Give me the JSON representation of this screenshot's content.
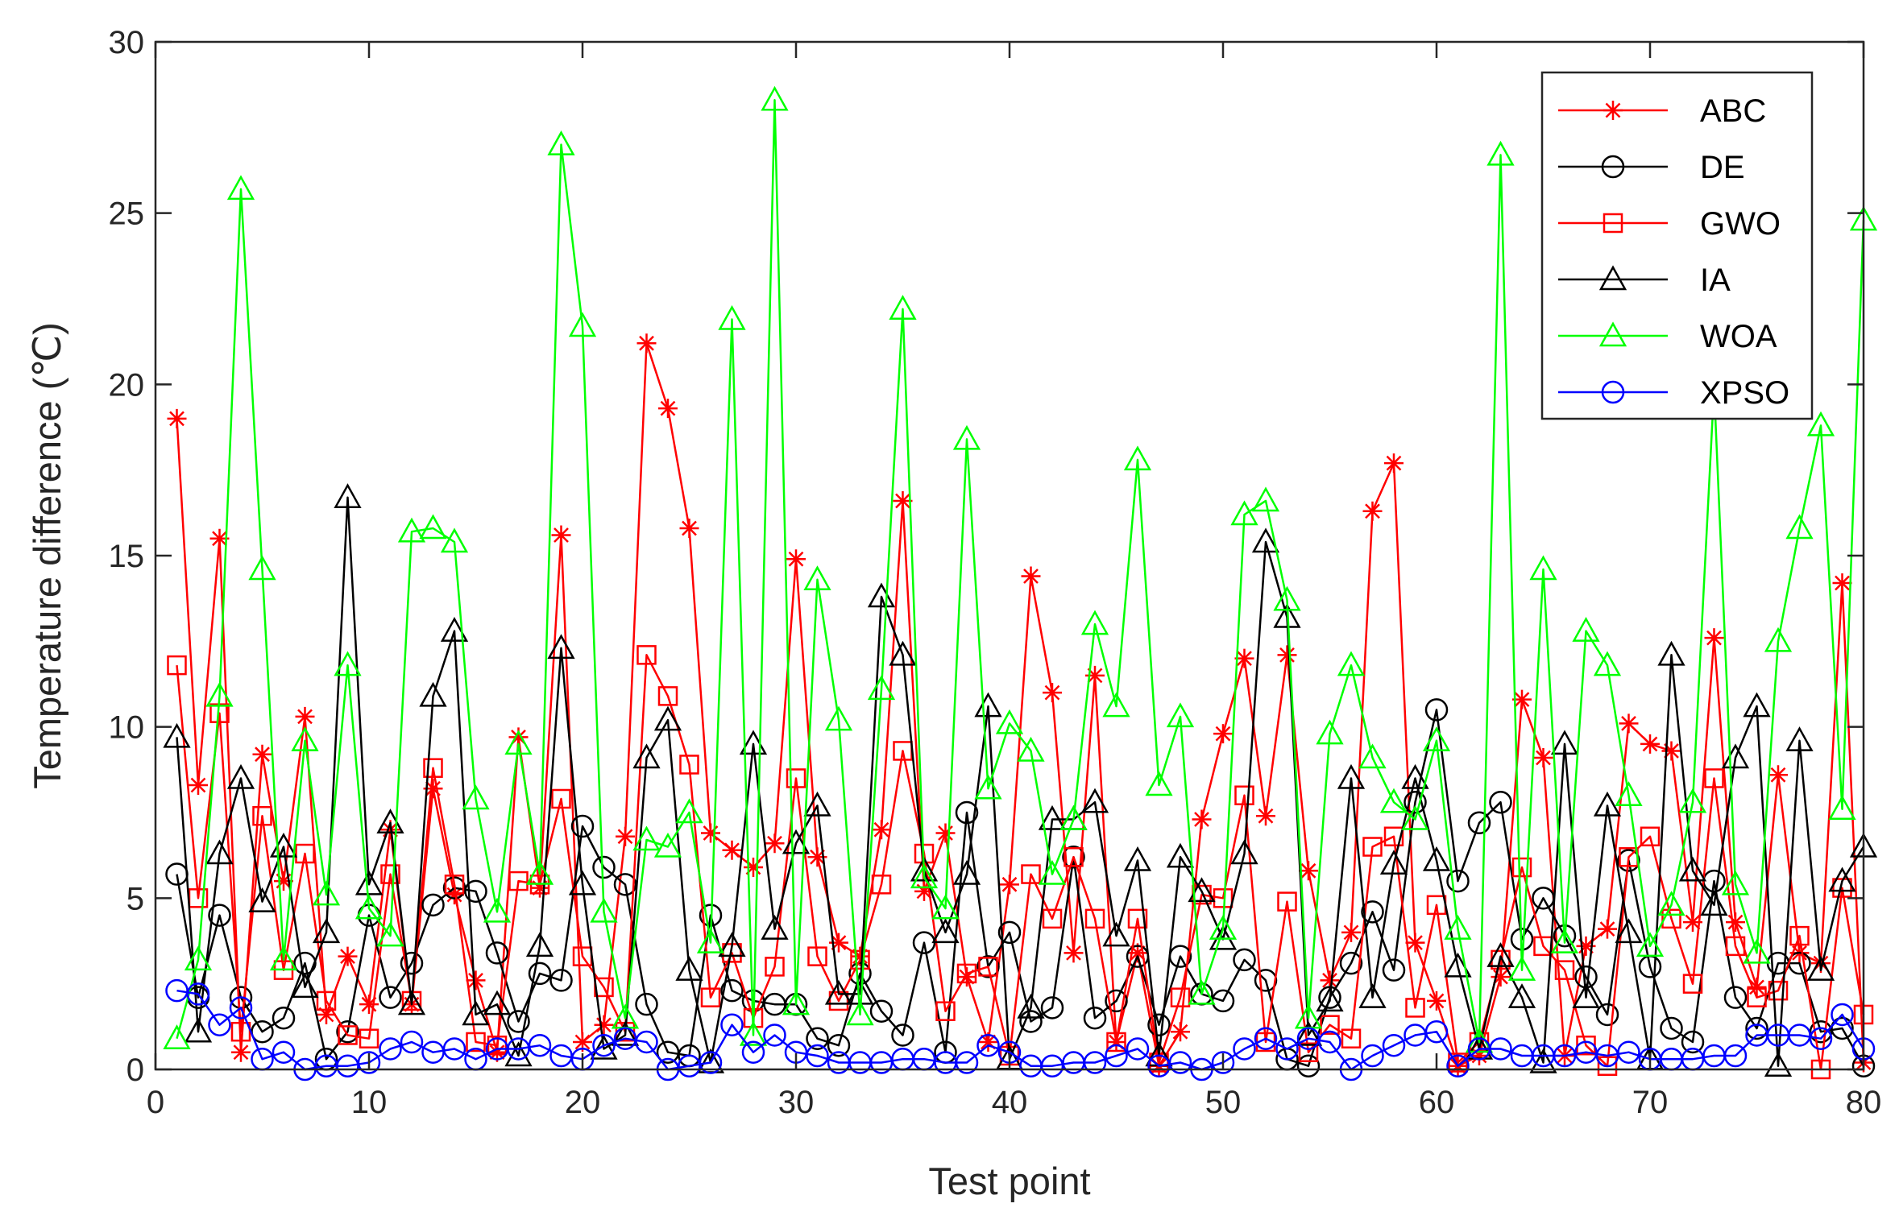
{
  "chart_data": {
    "type": "line",
    "title": "",
    "xlabel": "Test point",
    "ylabel": "Temperature difference (℃)",
    "xlim": [
      0,
      80
    ],
    "ylim": [
      0,
      30
    ],
    "xticks": [
      0,
      10,
      20,
      30,
      40,
      50,
      60,
      70,
      80
    ],
    "yticks": [
      0,
      5,
      10,
      15,
      20,
      25,
      30
    ],
    "grid": false,
    "legend_position": "top-right",
    "x": [
      1,
      2,
      3,
      4,
      5,
      6,
      7,
      8,
      9,
      10,
      11,
      12,
      13,
      14,
      15,
      16,
      17,
      18,
      19,
      20,
      21,
      22,
      23,
      24,
      25,
      26,
      27,
      28,
      29,
      30,
      31,
      32,
      33,
      34,
      35,
      36,
      37,
      38,
      39,
      40,
      41,
      42,
      43,
      44,
      45,
      46,
      47,
      48,
      49,
      50,
      51,
      52,
      53,
      54,
      55,
      56,
      57,
      58,
      59,
      60,
      61,
      62,
      63,
      64,
      65,
      66,
      67,
      68,
      69,
      70,
      71,
      72,
      73,
      74,
      75,
      76,
      77,
      78,
      79,
      80
    ],
    "series": [
      {
        "name": "ABC",
        "color": "#ff0000",
        "marker": "asterisk",
        "values": [
          19.0,
          8.3,
          15.5,
          0.5,
          9.2,
          5.5,
          10.3,
          1.6,
          3.3,
          1.9,
          7.0,
          1.9,
          8.2,
          5.1,
          2.6,
          0.5,
          9.7,
          5.3,
          15.6,
          0.8,
          1.3,
          6.8,
          21.2,
          19.3,
          15.8,
          6.9,
          6.4,
          5.9,
          6.6,
          14.9,
          6.2,
          3.7,
          3.3,
          7.0,
          16.6,
          5.2,
          6.9,
          2.7,
          0.8,
          5.4,
          14.4,
          11.0,
          3.4,
          11.5,
          0.8,
          3.4,
          0.1,
          1.1,
          7.3,
          9.8,
          12.0,
          7.4,
          12.1,
          5.8,
          2.6,
          4.0,
          16.3,
          17.7,
          3.7,
          2.0,
          0.1,
          0.4,
          2.7,
          10.8,
          9.1,
          0.4,
          3.6,
          4.1,
          10.1,
          9.5,
          9.3,
          4.3,
          12.6,
          4.3,
          2.4,
          8.6,
          3.4,
          3.1,
          14.2,
          0.2
        ]
      },
      {
        "name": "DE",
        "color": "#000000",
        "marker": "circle",
        "values": [
          5.7,
          2.1,
          4.5,
          2.1,
          1.1,
          1.5,
          3.1,
          0.3,
          1.1,
          4.5,
          2.1,
          3.1,
          4.8,
          5.3,
          5.2,
          3.4,
          1.4,
          2.8,
          2.6,
          7.1,
          5.9,
          5.4,
          1.9,
          0.5,
          0.4,
          4.5,
          2.3,
          2.0,
          1.9,
          1.9,
          0.9,
          0.7,
          2.8,
          1.7,
          1.0,
          3.7,
          0.5,
          7.5,
          3.0,
          4.0,
          1.4,
          1.8,
          6.2,
          1.5,
          2.0,
          3.3,
          1.3,
          3.3,
          2.2,
          2.0,
          3.2,
          2.6,
          0.3,
          0.1,
          2.1,
          3.1,
          4.6,
          2.9,
          7.8,
          10.5,
          5.5,
          7.2,
          7.8,
          3.8,
          5.0,
          3.9,
          2.7,
          1.6,
          6.1,
          3.0,
          1.2,
          0.8,
          5.5,
          2.1,
          1.2,
          3.1,
          3.1,
          1.1,
          1.2,
          0.1
        ]
      },
      {
        "name": "GWO",
        "color": "#ff0000",
        "marker": "square",
        "values": [
          11.8,
          5.0,
          10.4,
          1.1,
          7.4,
          2.9,
          6.3,
          2.0,
          1.0,
          0.9,
          5.7,
          2.0,
          8.8,
          5.4,
          0.8,
          0.7,
          5.5,
          5.4,
          7.9,
          3.3,
          2.4,
          1.1,
          12.1,
          10.9,
          8.9,
          2.1,
          3.4,
          1.5,
          3.0,
          8.5,
          3.3,
          2.0,
          3.2,
          5.4,
          9.3,
          6.3,
          1.7,
          2.8,
          3.0,
          0.4,
          5.7,
          4.4,
          6.2,
          4.4,
          0.8,
          4.4,
          0.2,
          2.1,
          5.1,
          5.0,
          8.0,
          0.8,
          4.9,
          0.5,
          1.3,
          0.9,
          6.5,
          6.8,
          1.8,
          4.8,
          0.2,
          0.8,
          3.2,
          5.9,
          3.6,
          2.9,
          0.7,
          0.1,
          6.2,
          6.8,
          4.4,
          2.5,
          8.5,
          3.6,
          2.1,
          2.3,
          3.9,
          0.0,
          5.3,
          1.6
        ]
      },
      {
        "name": "IA",
        "color": "#000000",
        "marker": "triangle",
        "values": [
          9.7,
          1.1,
          6.3,
          8.5,
          4.9,
          6.5,
          2.4,
          4.0,
          16.7,
          5.4,
          7.2,
          1.9,
          10.9,
          12.8,
          1.6,
          1.9,
          0.4,
          3.6,
          12.3,
          5.4,
          0.6,
          1.0,
          9.1,
          10.2,
          2.9,
          0.2,
          3.6,
          9.5,
          4.1,
          6.6,
          7.7,
          2.2,
          2.2,
          13.8,
          12.1,
          5.8,
          4.0,
          5.7,
          10.6,
          0.3,
          1.8,
          7.3,
          7.3,
          7.8,
          3.9,
          6.1,
          0.4,
          6.2,
          5.2,
          3.8,
          6.3,
          15.4,
          13.2,
          1.0,
          2.0,
          8.5,
          2.1,
          6.0,
          8.5,
          6.1,
          3.0,
          0.6,
          3.3,
          2.1,
          0.2,
          9.5,
          2.1,
          7.7,
          4.0,
          0.3,
          12.1,
          5.8,
          4.8,
          9.1,
          10.6,
          0.1,
          9.6,
          2.9,
          5.5,
          6.5
        ]
      },
      {
        "name": "WOA",
        "color": "#00ff00",
        "marker": "triangle",
        "values": [
          0.9,
          3.2,
          10.9,
          25.7,
          14.6,
          3.2,
          9.6,
          5.1,
          11.8,
          4.7,
          3.9,
          15.7,
          15.8,
          15.4,
          7.9,
          4.6,
          9.5,
          5.7,
          27.0,
          21.7,
          4.6,
          1.5,
          6.7,
          6.5,
          7.5,
          3.7,
          21.9,
          1.0,
          28.3,
          1.9,
          14.3,
          10.2,
          1.6,
          11.1,
          22.2,
          5.6,
          4.7,
          18.4,
          8.2,
          10.1,
          9.3,
          5.7,
          7.3,
          13.0,
          10.6,
          17.8,
          8.3,
          10.3,
          2.2,
          4.1,
          16.2,
          16.6,
          13.7,
          1.5,
          9.8,
          11.8,
          9.1,
          7.8,
          7.3,
          9.6,
          4.1,
          0.8,
          26.7,
          2.9,
          14.6,
          3.7,
          12.8,
          11.8,
          8.0,
          3.6,
          4.8,
          7.8,
          19.9,
          5.4,
          3.4,
          12.5,
          15.8,
          18.8,
          7.6,
          24.8
        ]
      },
      {
        "name": "XPSO",
        "color": "#0000ff",
        "marker": "circle",
        "values": [
          2.3,
          2.2,
          1.3,
          1.8,
          0.3,
          0.5,
          0.0,
          0.1,
          0.1,
          0.2,
          0.6,
          0.8,
          0.5,
          0.6,
          0.3,
          0.6,
          0.6,
          0.7,
          0.4,
          0.3,
          0.7,
          0.9,
          0.8,
          0.0,
          0.1,
          0.2,
          1.3,
          0.5,
          1.0,
          0.5,
          0.4,
          0.2,
          0.2,
          0.2,
          0.3,
          0.3,
          0.2,
          0.2,
          0.7,
          0.5,
          0.1,
          0.1,
          0.2,
          0.2,
          0.4,
          0.6,
          0.1,
          0.2,
          0.0,
          0.2,
          0.6,
          0.9,
          0.6,
          0.9,
          0.8,
          0.0,
          0.4,
          0.7,
          1.0,
          1.1,
          0.1,
          0.6,
          0.6,
          0.4,
          0.4,
          0.4,
          0.5,
          0.4,
          0.5,
          0.3,
          0.3,
          0.3,
          0.4,
          0.4,
          1.0,
          1.0,
          1.0,
          0.9,
          1.6,
          0.6
        ]
      }
    ]
  }
}
